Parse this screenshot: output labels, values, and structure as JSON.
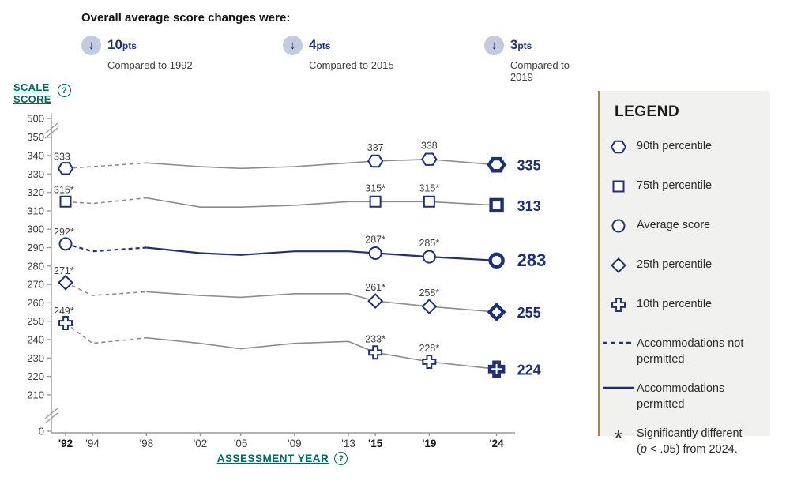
{
  "colors": {
    "navy": "#1f3171",
    "gray_line": "#8c8c8c",
    "teal": "#00685e",
    "axis": "#9a9a9a"
  },
  "header": {
    "title": "Overall average score changes were:",
    "changes": [
      {
        "glyph": "↓",
        "amount": "10",
        "unit": "pts",
        "note": "Compared to 1992"
      },
      {
        "glyph": "↓",
        "amount": "4",
        "unit": "pts",
        "note": "Compared to 2015"
      },
      {
        "glyph": "↓",
        "amount": "3",
        "unit": "pts",
        "note": "Compared to 2019"
      }
    ]
  },
  "y_axis": {
    "label_line1": "SCALE",
    "label_line2": "SCORE",
    "help_icon": "?",
    "ticks": [
      500,
      350,
      340,
      330,
      320,
      310,
      300,
      290,
      280,
      270,
      260,
      250,
      240,
      230,
      220,
      210,
      0
    ]
  },
  "x_axis": {
    "label": "ASSESSMENT YEAR",
    "help_icon": "?",
    "ticks": [
      {
        "label": "'92",
        "bold": true
      },
      {
        "label": "'94",
        "bold": false
      },
      {
        "label": "'98",
        "bold": false
      },
      {
        "label": "'02",
        "bold": false
      },
      {
        "label": "'05",
        "bold": false
      },
      {
        "label": "'09",
        "bold": false
      },
      {
        "label": "'13",
        "bold": false
      },
      {
        "label": "'15",
        "bold": true
      },
      {
        "label": "'19",
        "bold": true
      },
      {
        "label": "'24",
        "bold": true
      }
    ]
  },
  "chart_data": {
    "type": "line",
    "title": "Scale score trends by percentile",
    "xlabel": "ASSESSMENT YEAR",
    "ylabel": "SCALE SCORE",
    "x": [
      1992,
      1994,
      1998,
      2002,
      2005,
      2009,
      2013,
      2015,
      2019,
      2024
    ],
    "x_tick_labels": [
      "'92",
      "'94",
      "'98",
      "'02",
      "'05",
      "'09",
      "'13",
      "'15",
      "'19",
      "'24"
    ],
    "ylim_shown": [
      210,
      350
    ],
    "axis_breaks": [
      [
        350,
        500
      ],
      [
        0,
        210
      ]
    ],
    "grid": false,
    "dashed_through_year": 1998,
    "marker_years": [
      1992,
      2015,
      2019,
      2024
    ],
    "series": [
      {
        "name": "90th percentile",
        "marker": "hexagon",
        "line_color": "gray",
        "emphasized": false,
        "values": [
          333,
          334,
          336,
          334,
          333,
          334,
          336,
          337,
          338,
          335
        ],
        "point_labels": {
          "1992": "333",
          "2015": "337",
          "2019": "338"
        },
        "end_label": "335"
      },
      {
        "name": "75th percentile",
        "marker": "square",
        "line_color": "gray",
        "emphasized": false,
        "values": [
          315,
          314,
          317,
          312,
          312,
          313,
          315,
          315,
          315,
          313
        ],
        "point_labels": {
          "1992": "315*",
          "2015": "315*",
          "2019": "315*"
        },
        "end_label": "313"
      },
      {
        "name": "Average score",
        "marker": "circle",
        "line_color": "navy",
        "emphasized": true,
        "values": [
          292,
          288,
          290,
          287,
          286,
          288,
          288,
          287,
          285,
          283
        ],
        "point_labels": {
          "1992": "292*",
          "2015": "287*",
          "2019": "285*"
        },
        "end_label": "283"
      },
      {
        "name": "25th percentile",
        "marker": "diamond",
        "line_color": "gray",
        "emphasized": false,
        "values": [
          271,
          264,
          266,
          264,
          263,
          265,
          265,
          261,
          258,
          255
        ],
        "point_labels": {
          "1992": "271*",
          "2015": "261*",
          "2019": "258*"
        },
        "end_label": "255"
      },
      {
        "name": "10th percentile",
        "marker": "plus",
        "line_color": "gray",
        "emphasized": false,
        "values": [
          249,
          238,
          241,
          238,
          235,
          238,
          239,
          233,
          228,
          224
        ],
        "point_labels": {
          "1992": "249*",
          "2015": "233*",
          "2019": "228*"
        },
        "end_label": "224"
      }
    ]
  },
  "legend": {
    "title": "LEGEND",
    "items": [
      {
        "swatch": "hexagon",
        "label": "90th percentile"
      },
      {
        "swatch": "square",
        "label": "75th percentile"
      },
      {
        "swatch": "circle",
        "label": "Average score"
      },
      {
        "swatch": "diamond",
        "label": "25th percentile"
      },
      {
        "swatch": "plus",
        "label": "10th percentile"
      },
      {
        "swatch": "dashed-line",
        "label": "Accommodations not permitted",
        "multiline": true
      },
      {
        "swatch": "solid-line",
        "label": "Accommodations permitted",
        "multiline": true
      },
      {
        "swatch": "asterisk",
        "glyph": "*",
        "multiline": true,
        "label_parts": {
          "line1": "Significantly different",
          "pre": "(",
          "italic": "p",
          "post": " < .05) from 2024."
        }
      }
    ]
  }
}
